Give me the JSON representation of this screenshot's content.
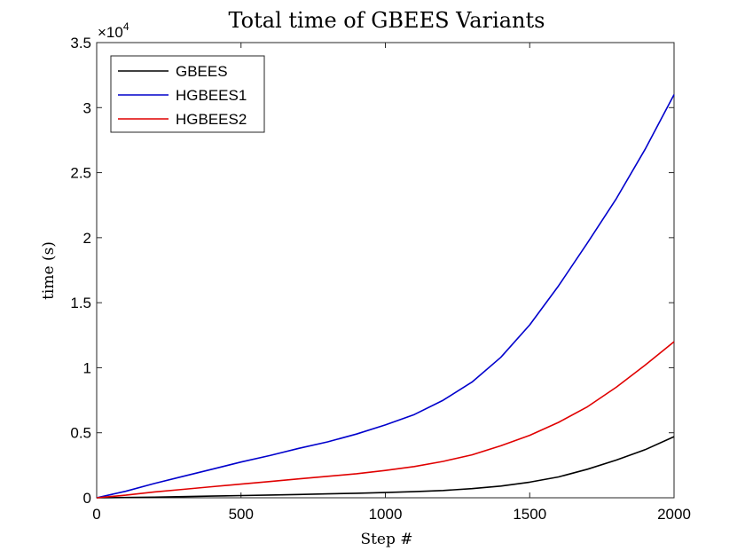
{
  "chart_data": {
    "type": "line",
    "title": "Total time of GBEES Variants",
    "xlabel": "Step #",
    "ylabel": "time (s)",
    "xlim": [
      0,
      2000
    ],
    "ylim": [
      0,
      35000
    ],
    "y_exponent_label": "×10",
    "y_exponent_power": "4",
    "x_ticks": [
      0,
      500,
      1000,
      1500,
      2000
    ],
    "x_tick_labels": [
      "0",
      "500",
      "1000",
      "1500",
      "2000"
    ],
    "y_ticks": [
      0,
      5000,
      10000,
      15000,
      20000,
      25000,
      30000,
      35000
    ],
    "y_tick_labels": [
      "0",
      "0.5",
      "1",
      "1.5",
      "2",
      "2.5",
      "3",
      "3.5"
    ],
    "grid": false,
    "legend_position": "top-left",
    "x": [
      0,
      100,
      200,
      300,
      400,
      500,
      600,
      700,
      800,
      900,
      1000,
      1100,
      1200,
      1300,
      1400,
      1500,
      1600,
      1700,
      1800,
      1900,
      2000
    ],
    "series": [
      {
        "name": "GBEES",
        "color": "#000000",
        "values": [
          0,
          20,
          50,
          90,
          130,
          170,
          210,
          250,
          300,
          350,
          400,
          470,
          560,
          700,
          900,
          1200,
          1600,
          2200,
          2900,
          3700,
          4700
        ]
      },
      {
        "name": "HGBEES1",
        "color": "#0000cc",
        "values": [
          0,
          500,
          1100,
          1650,
          2200,
          2750,
          3250,
          3800,
          4300,
          4900,
          5600,
          6400,
          7500,
          8900,
          10800,
          13300,
          16300,
          19600,
          23000,
          26800,
          31000
        ]
      },
      {
        "name": "HGBEES2",
        "color": "#e00000",
        "values": [
          0,
          200,
          450,
          650,
          850,
          1050,
          1250,
          1450,
          1650,
          1850,
          2100,
          2400,
          2800,
          3300,
          4000,
          4800,
          5800,
          7000,
          8500,
          10200,
          12000
        ]
      }
    ]
  }
}
